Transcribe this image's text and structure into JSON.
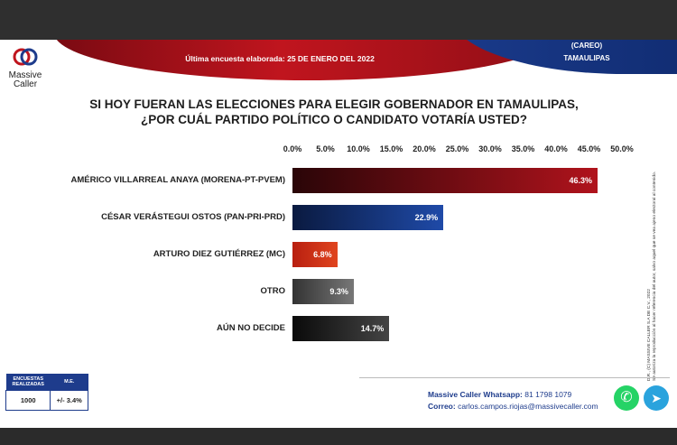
{
  "header": {
    "survey_date_text": "Última encuesta elaborada:  25 DE ENERO DEL 2022",
    "careo": "(CAREO)",
    "state": "TAMAULIPAS"
  },
  "logo": {
    "line1": "Massive",
    "line2": "Caller"
  },
  "chart_data": {
    "type": "bar",
    "orientation": "horizontal",
    "title": "SI HOY FUERAN LAS ELECCIONES PARA ELEGIR GOBERNADOR EN TAMAULIPAS, ¿POR CUÁL PARTIDO POLÍTICO O CANDIDATO VOTARÍA USTED?",
    "title_lines": [
      "SI HOY FUERAN LAS ELECCIONES PARA ELEGIR GOBERNADOR EN TAMAULIPAS,",
      "¿POR CUÁL PARTIDO POLÍTICO O CANDIDATO VOTARÍA USTED?"
    ],
    "categories": [
      "AMÉRICO VILLARREAL ANAYA (MORENA-PT-PVEM)",
      "CÉSAR VERÁSTEGUI OSTOS (PAN-PRI-PRD)",
      "ARTURO DIEZ GUTIÉRREZ (MC)",
      "OTRO",
      "AÚN NO DECIDE"
    ],
    "values": [
      46.3,
      22.9,
      6.8,
      9.3,
      14.7
    ],
    "value_labels": [
      "46.3%",
      "22.9%",
      "6.8%",
      "9.3%",
      "14.7%"
    ],
    "bar_colors": [
      [
        "#2a0508",
        "#b0131c"
      ],
      [
        "#0a1a40",
        "#1f4aa8"
      ],
      [
        "#b81f10",
        "#e0441e"
      ],
      [
        "#333333",
        "#777777"
      ],
      [
        "#0a0a0a",
        "#444444"
      ]
    ],
    "xlim": [
      0,
      50
    ],
    "xticks": [
      "0.0%",
      "5.0%",
      "10.0%",
      "15.0%",
      "20.0%",
      "25.0%",
      "30.0%",
      "35.0%",
      "40.0%",
      "45.0%",
      "50.0%"
    ],
    "grid": false,
    "legend": "none"
  },
  "side_note": {
    "line1": "D.R., (C) MASSIVE CALLER S.A DE C.V., 2022",
    "line2": "Se autoriza la reproducción al hacer referencia del autor, salvo aquel que se vea ajeno electoral al contenido."
  },
  "sample": {
    "col1_header_lines": [
      "ENCUESTAS",
      "REALIZADAS"
    ],
    "col2_header": "M.E.",
    "count": "1000",
    "margin": "+/- 3.4%"
  },
  "contact": {
    "whatsapp_label": "Massive Caller Whatsapp:",
    "whatsapp_number": "81 1798 1079",
    "email_label": "Correo:",
    "email": "carlos.campos.riojas@massivecaller.com"
  },
  "icons": {
    "whatsapp": "whatsapp-icon",
    "telegram": "telegram-icon"
  }
}
